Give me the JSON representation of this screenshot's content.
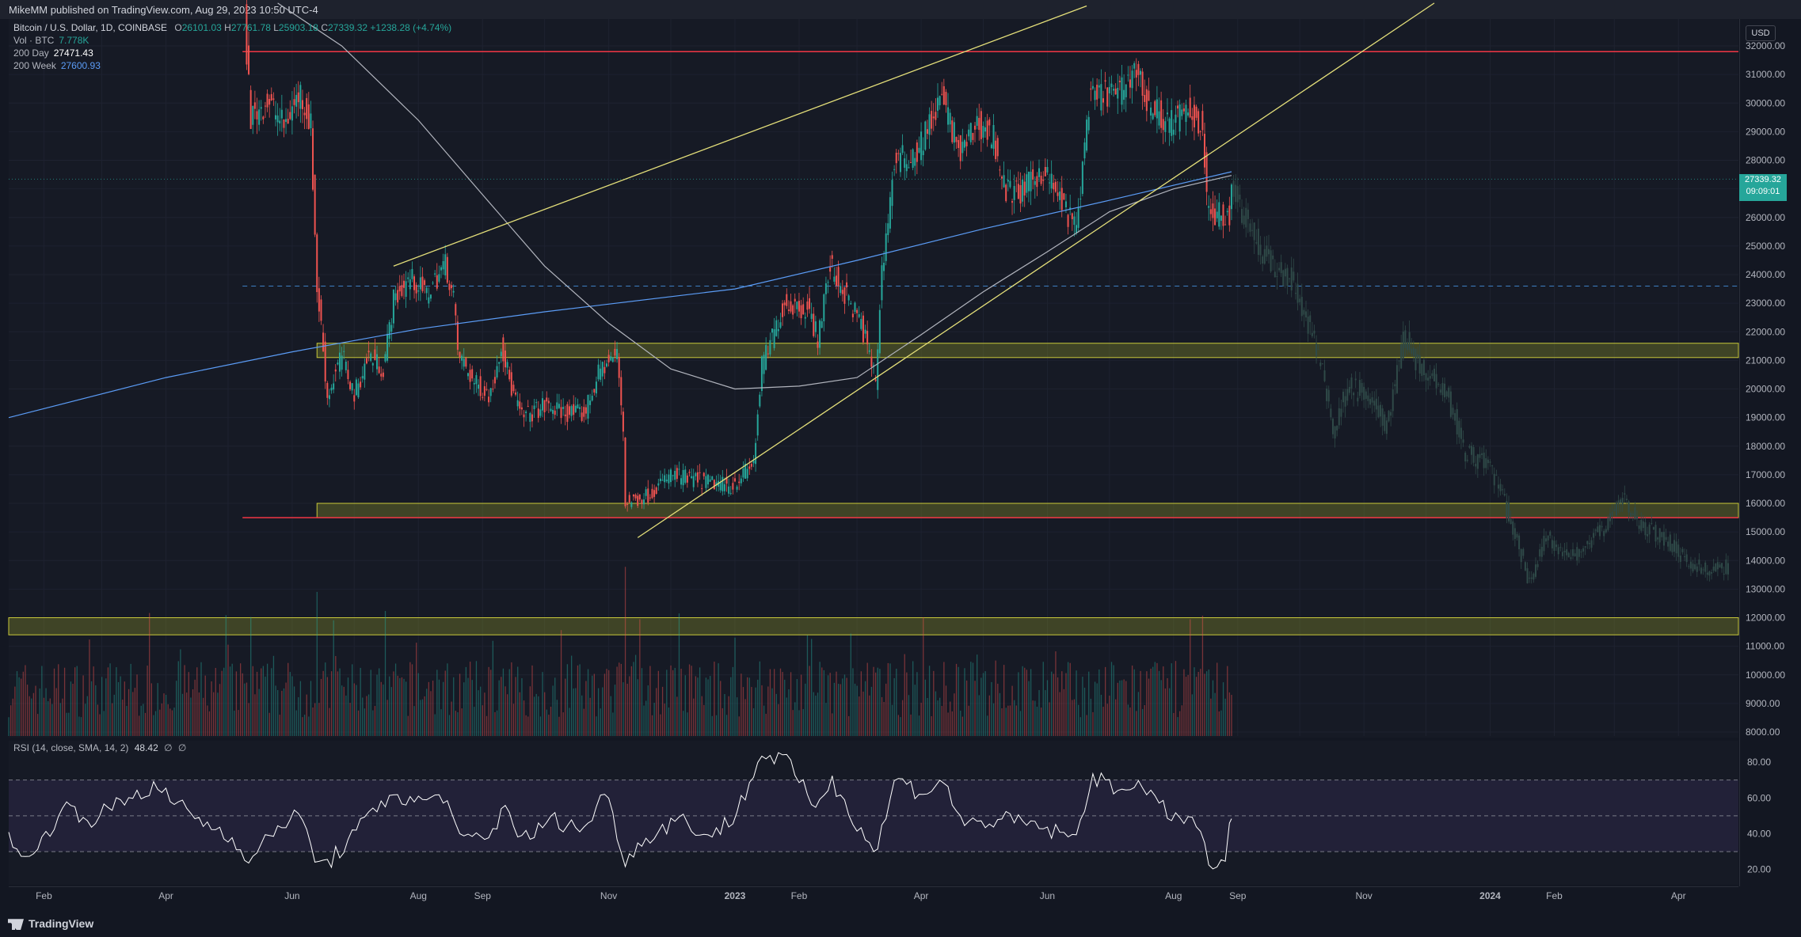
{
  "header": {
    "published": "MikeMM published on TradingView.com, Aug 29, 2023 10:50 UTC-4"
  },
  "legend": {
    "symbol": "Bitcoin / U.S. Dollar, 1D, COINBASE",
    "ohlc": {
      "o_label": "O",
      "o": "26101.03",
      "h_label": "H",
      "h": "27761.78",
      "l_label": "L",
      "l": "25903.18",
      "c_label": "C",
      "c": "27339.32",
      "change": "+1238.28 (+4.74%)"
    },
    "vol_label": "Vol · BTC",
    "vol": "7.778K",
    "ma200d_label": "200 Day",
    "ma200d": "27471.43",
    "ma200w_label": "200 Week",
    "ma200w": "27600.93"
  },
  "rsi_legend": {
    "label": "RSI (14, close, SMA, 14, 2)",
    "value": "48.42",
    "extra1": "∅",
    "extra2": "∅"
  },
  "price_axis": {
    "currency": "USD",
    "ticks": [
      "32000.00",
      "31000.00",
      "30000.00",
      "29000.00",
      "28000.00",
      "27000.00",
      "26000.00",
      "25000.00",
      "24000.00",
      "23000.00",
      "22000.00",
      "21000.00",
      "20000.00",
      "19000.00",
      "18000.00",
      "17000.00",
      "16000.00",
      "15000.00",
      "14000.00",
      "13000.00",
      "12000.00",
      "11000.00",
      "10000.00",
      "9000.00",
      "8000.00"
    ],
    "last_price": "27339.32",
    "countdown": "09:09:01"
  },
  "rsi_axis": {
    "ticks": [
      "80.00",
      "60.00",
      "40.00",
      "20.00"
    ]
  },
  "time_axis": {
    "ticks": [
      "Feb",
      "Apr",
      "Jun",
      "Aug",
      "Sep",
      "Nov",
      "2023",
      "Feb",
      "Apr",
      "Jun",
      "Aug",
      "Sep",
      "Nov",
      "2024",
      "Feb",
      "Apr"
    ]
  },
  "footer": {
    "brand": "TradingView"
  },
  "colors": {
    "up": "#26a69a",
    "down": "#ef5350",
    "ma200d": "#b2b5be",
    "ma200w": "#5b9cf6",
    "zone": "#c8c83a",
    "resistance": "#f23645",
    "trendline": "#e5e07a",
    "rsi": "#ffffff"
  },
  "chart_data": {
    "type": "candlestick",
    "title": "Bitcoin / U.S. Dollar, 1D, COINBASE",
    "y_range": [
      8000,
      32500
    ],
    "rsi_range": [
      15,
      88
    ],
    "x_range": [
      "2022-01-15",
      "2024-04-30"
    ],
    "last_date": "2023-08-29",
    "price_path": [
      [
        "2022-05-10",
        31800
      ],
      [
        "2022-05-12",
        29500
      ],
      [
        "2022-05-20",
        30100
      ],
      [
        "2022-05-28",
        29200
      ],
      [
        "2022-06-05",
        30400
      ],
      [
        "2022-06-10",
        29200
      ],
      [
        "2022-06-13",
        23500
      ],
      [
        "2022-06-15",
        22200
      ],
      [
        "2022-06-18",
        19700
      ],
      [
        "2022-06-25",
        21200
      ],
      [
        "2022-07-01",
        19800
      ],
      [
        "2022-07-08",
        21200
      ],
      [
        "2022-07-15",
        20700
      ],
      [
        "2022-07-20",
        23100
      ],
      [
        "2022-07-28",
        23900
      ],
      [
        "2022-08-05",
        23300
      ],
      [
        "2022-08-14",
        24400
      ],
      [
        "2022-08-18",
        23200
      ],
      [
        "2022-08-20",
        21300
      ],
      [
        "2022-08-28",
        20200
      ],
      [
        "2022-09-05",
        19800
      ],
      [
        "2022-09-10",
        21600
      ],
      [
        "2022-09-15",
        20000
      ],
      [
        "2022-09-20",
        19000
      ],
      [
        "2022-10-01",
        19400
      ],
      [
        "2022-10-10",
        19200
      ],
      [
        "2022-10-20",
        19100
      ],
      [
        "2022-10-28",
        20700
      ],
      [
        "2022-11-05",
        21200
      ],
      [
        "2022-11-08",
        18600
      ],
      [
        "2022-11-09",
        16000
      ],
      [
        "2022-11-20",
        16300
      ],
      [
        "2022-12-01",
        17000
      ],
      [
        "2022-12-15",
        16800
      ],
      [
        "2022-12-30",
        16600
      ],
      [
        "2023-01-10",
        17400
      ],
      [
        "2023-01-14",
        20800
      ],
      [
        "2023-01-25",
        23000
      ],
      [
        "2023-02-05",
        22800
      ],
      [
        "2023-02-10",
        21800
      ],
      [
        "2023-02-16",
        24300
      ],
      [
        "2023-02-24",
        23200
      ],
      [
        "2023-03-03",
        22300
      ],
      [
        "2023-03-10",
        20300
      ],
      [
        "2023-03-13",
        24100
      ],
      [
        "2023-03-19",
        27900
      ],
      [
        "2023-03-30",
        28300
      ],
      [
        "2023-04-11",
        30200
      ],
      [
        "2023-04-20",
        28200
      ],
      [
        "2023-04-28",
        29300
      ],
      [
        "2023-05-06",
        28800
      ],
      [
        "2023-05-12",
        26900
      ],
      [
        "2023-05-20",
        26900
      ],
      [
        "2023-05-30",
        27700
      ],
      [
        "2023-06-08",
        26500
      ],
      [
        "2023-06-15",
        25600
      ],
      [
        "2023-06-21",
        30000
      ],
      [
        "2023-06-30",
        30400
      ],
      [
        "2023-07-06",
        30300
      ],
      [
        "2023-07-13",
        31300
      ],
      [
        "2023-07-20",
        29900
      ],
      [
        "2023-07-30",
        29300
      ],
      [
        "2023-08-08",
        29700
      ],
      [
        "2023-08-15",
        29200
      ],
      [
        "2023-08-17",
        26600
      ],
      [
        "2023-08-18",
        26100
      ],
      [
        "2023-08-25",
        26100
      ],
      [
        "2023-08-28",
        26100
      ],
      [
        "2023-08-29",
        27339
      ]
    ],
    "ghost_path": [
      [
        "2023-08-30",
        27000
      ],
      [
        "2023-09-05",
        26000
      ],
      [
        "2023-09-12",
        24800
      ],
      [
        "2023-09-20",
        24200
      ],
      [
        "2023-09-28",
        23700
      ],
      [
        "2023-10-05",
        22200
      ],
      [
        "2023-10-12",
        20800
      ],
      [
        "2023-10-17",
        18500
      ],
      [
        "2023-10-25",
        20200
      ],
      [
        "2023-11-05",
        19500
      ],
      [
        "2023-11-12",
        18600
      ],
      [
        "2023-11-20",
        21900
      ],
      [
        "2023-11-28",
        20800
      ],
      [
        "2023-12-10",
        20100
      ],
      [
        "2023-12-20",
        17800
      ],
      [
        "2024-01-01",
        17300
      ],
      [
        "2024-01-08",
        16000
      ],
      [
        "2024-01-14",
        14600
      ],
      [
        "2024-01-20",
        13200
      ],
      [
        "2024-01-28",
        14800
      ],
      [
        "2024-02-10",
        14100
      ],
      [
        "2024-02-25",
        15200
      ],
      [
        "2024-03-05",
        16200
      ],
      [
        "2024-03-12",
        15300
      ],
      [
        "2024-03-25",
        14800
      ],
      [
        "2024-04-05",
        14000
      ],
      [
        "2024-04-15",
        13600
      ],
      [
        "2024-04-25",
        13800
      ]
    ],
    "ma200d": [
      [
        "2022-05-25",
        33500
      ],
      [
        "2022-06-25",
        32000
      ],
      [
        "2022-08-01",
        29400
      ],
      [
        "2022-09-01",
        26800
      ],
      [
        "2022-10-01",
        24300
      ],
      [
        "2022-11-01",
        22300
      ],
      [
        "2022-12-01",
        20700
      ],
      [
        "2023-01-01",
        20000
      ],
      [
        "2023-02-01",
        20100
      ],
      [
        "2023-03-01",
        20400
      ],
      [
        "2023-04-01",
        21900
      ],
      [
        "2023-05-01",
        23400
      ],
      [
        "2023-06-01",
        24800
      ],
      [
        "2023-07-01",
        26200
      ],
      [
        "2023-08-01",
        27000
      ],
      [
        "2023-08-29",
        27470
      ]
    ],
    "ma200w": [
      [
        "2022-01-15",
        19000
      ],
      [
        "2022-04-01",
        20400
      ],
      [
        "2022-06-01",
        21300
      ],
      [
        "2022-08-01",
        22100
      ],
      [
        "2022-10-01",
        22700
      ],
      [
        "2023-01-01",
        23500
      ],
      [
        "2023-03-01",
        24500
      ],
      [
        "2023-05-01",
        25600
      ],
      [
        "2023-07-01",
        26600
      ],
      [
        "2023-08-29",
        27600
      ]
    ],
    "zones": [
      {
        "from": 21100,
        "to": 21600,
        "start": "2022-06-13",
        "end": "2024-04-30"
      },
      {
        "from": 15500,
        "to": 16000,
        "start": "2022-06-13",
        "end": "2024-04-30"
      },
      {
        "from": 11400,
        "to": 12000,
        "start": "2022-01-15",
        "end": "2024-04-30"
      }
    ],
    "resistance": [
      {
        "price": 31800,
        "start": "2022-05-08",
        "end": "2024-04-30"
      },
      {
        "price": 15500,
        "start": "2022-05-08",
        "end": "2024-04-30"
      }
    ],
    "dashed_level": {
      "price": 23600,
      "start": "2022-05-08",
      "end": "2024-04-30"
    },
    "trendlines": [
      {
        "from": [
          "2022-07-20",
          24300
        ],
        "to": [
          "2023-06-20",
          33400
        ]
      },
      {
        "from": [
          "2022-11-15",
          14800
        ],
        "to": [
          "2023-12-05",
          33500
        ]
      }
    ],
    "volume_max": 120,
    "rsi_levels": [
      70,
      50,
      30
    ],
    "rsi": [
      [
        "2022-01-15",
        40
      ],
      [
        "2022-01-25",
        24
      ],
      [
        "2022-02-10",
        55
      ],
      [
        "2022-02-25",
        48
      ],
      [
        "2022-03-10",
        58
      ],
      [
        "2022-03-25",
        66
      ],
      [
        "2022-04-05",
        58
      ],
      [
        "2022-04-20",
        46
      ],
      [
        "2022-05-05",
        36
      ],
      [
        "2022-05-12",
        24
      ],
      [
        "2022-05-25",
        45
      ],
      [
        "2022-06-05",
        50
      ],
      [
        "2022-06-13",
        24
      ],
      [
        "2022-06-18",
        23
      ],
      [
        "2022-07-01",
        40
      ],
      [
        "2022-07-20",
        64
      ],
      [
        "2022-07-28",
        57
      ],
      [
        "2022-08-14",
        62
      ],
      [
        "2022-08-20",
        37
      ],
      [
        "2022-09-05",
        38
      ],
      [
        "2022-09-12",
        58
      ],
      [
        "2022-09-20",
        36
      ],
      [
        "2022-10-05",
        48
      ],
      [
        "2022-10-20",
        42
      ],
      [
        "2022-10-30",
        64
      ],
      [
        "2022-11-09",
        26
      ],
      [
        "2022-11-22",
        40
      ],
      [
        "2022-12-05",
        49
      ],
      [
        "2022-12-20",
        38
      ],
      [
        "2023-01-01",
        50
      ],
      [
        "2023-01-14",
        84
      ],
      [
        "2023-01-25",
        82
      ],
      [
        "2023-02-08",
        56
      ],
      [
        "2023-02-17",
        69
      ],
      [
        "2023-03-10",
        29
      ],
      [
        "2023-03-20",
        72
      ],
      [
        "2023-04-01",
        62
      ],
      [
        "2023-04-11",
        70
      ],
      [
        "2023-04-22",
        45
      ],
      [
        "2023-05-10",
        48
      ],
      [
        "2023-05-25",
        45
      ],
      [
        "2023-06-15",
        37
      ],
      [
        "2023-06-22",
        72
      ],
      [
        "2023-07-05",
        64
      ],
      [
        "2023-07-13",
        70
      ],
      [
        "2023-07-25",
        55
      ],
      [
        "2023-08-05",
        48
      ],
      [
        "2023-08-14",
        44
      ],
      [
        "2023-08-17",
        23
      ],
      [
        "2023-08-20",
        21
      ],
      [
        "2023-08-26",
        27
      ],
      [
        "2023-08-29",
        48
      ]
    ]
  }
}
